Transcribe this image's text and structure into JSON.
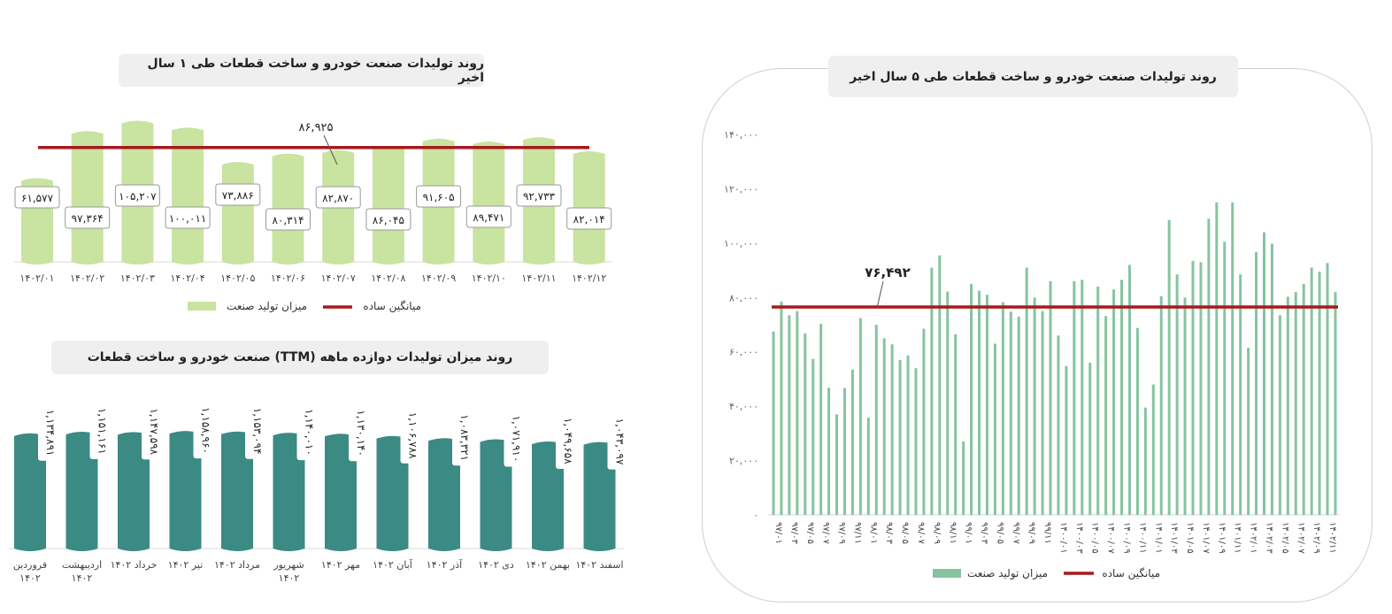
{
  "chart_data": [
    {
      "id": "c1",
      "type": "bar",
      "title": "روند تولیدات صنعت خودرو و ساخت قطعات طی ۱ سال اخیر",
      "categories": [
        "۱۴۰۲/۰۱",
        "۱۴۰۲/۰۲",
        "۱۴۰۲/۰۳",
        "۱۴۰۲/۰۴",
        "۱۴۰۲/۰۵",
        "۱۴۰۲/۰۶",
        "۱۴۰۲/۰۷",
        "۱۴۰۲/۰۸",
        "۱۴۰۲/۰۹",
        "۱۴۰۲/۱۰",
        "۱۴۰۲/۱۱",
        "۱۴۰۲/۱۲"
      ],
      "values": [
        61577,
        97364,
        105207,
        100011,
        73886,
        80314,
        82870,
        86045,
        91605,
        89471,
        92733,
        82014
      ],
      "value_labels": [
        "۶۱,۵۷۷",
        "۹۷,۳۶۴",
        "۱۰۵,۲۰۷",
        "۱۰۰,۰۱۱",
        "۷۳,۸۸۶",
        "۸۰,۳۱۴",
        "۸۲,۸۷۰",
        "۸۶,۰۴۵",
        "۹۱,۶۰۵",
        "۸۹,۴۷۱",
        "۹۲,۷۳۳",
        "۸۲,۰۱۴"
      ],
      "average": 86925,
      "average_label": "۸۶,۹۲۵",
      "legend": {
        "bar": "میزان تولید صنعت",
        "line": "میانگین ساده"
      },
      "colors": {
        "bar": "#c9e3a0",
        "line": "#a8181c"
      }
    },
    {
      "id": "c2",
      "type": "bar",
      "title": "روند میزان تولیدات دوازده ماهه (TTM) صنعت خودرو و ساخت قطعات",
      "categories": [
        "فروردین ۱۴۰۲",
        "اردیبهشت ۱۴۰۲",
        "خرداد ۱۴۰۲",
        "تیر ۱۴۰۲",
        "مرداد ۱۴۰۲",
        "شهریور ۱۴۰۲",
        "مهر ۱۴۰۲",
        "آبان ۱۴۰۲",
        "آذر ۱۴۰۲",
        "دی ۱۴۰۲",
        "بهمن ۱۴۰۲",
        "اسفند ۱۴۰۲"
      ],
      "values": [
        1134891,
        1151161,
        1147598,
        1158960,
        1153094,
        1140010,
        1130140,
        1106788,
        1083321,
        1071910,
        1049658,
        1043097
      ],
      "value_labels": [
        "۱,۱۳۴,۸۹۱",
        "۱,۱۵۱,۱۶۱",
        "۱,۱۴۷,۵۹۸",
        "۱,۱۵۸,۹۶۰",
        "۱,۱۵۳,۰۹۴",
        "۱,۱۴۰,۰۱۰",
        "۱,۱۳۰,۱۴۰",
        "۱,۱۰۶,۷۸۸",
        "۱,۰۸۳,۳۲۱",
        "۱,۰۷۱,۹۱۰",
        "۱,۰۴۹,۶۵۸",
        "۱,۰۴۳,۰۹۷"
      ],
      "colors": {
        "bar": "#3c8a84"
      }
    },
    {
      "id": "c3",
      "type": "bar",
      "title": "روند تولیدات صنعت خودرو و ساخت قطعات طی ۵ سال اخیر",
      "ylim": [
        0,
        140000
      ],
      "yticks": [
        "۰",
        "۲۰,۰۰۰",
        "۴۰,۰۰۰",
        "۶۰,۰۰۰",
        "۸۰,۰۰۰",
        "۱۰۰,۰۰۰",
        "۱۲۰,۰۰۰",
        "۱۴۰,۰۰۰"
      ],
      "x_labels": [
        "۹۷/۰۱",
        "۹۷/۰۳",
        "۹۷/۰۵",
        "۹۷/۰۷",
        "۹۷/۰۹",
        "۹۷/۱۱",
        "۹۸/۰۱",
        "۹۸/۰۳",
        "۹۸/۰۵",
        "۹۸/۰۷",
        "۹۸/۰۹",
        "۹۸/۱۱",
        "۹۹/۰۱",
        "۹۹/۰۳",
        "۹۹/۰۵",
        "۹۹/۰۷",
        "۹۹/۰۹",
        "۹۹/۱۱",
        "۱۴۰۰/۰۱",
        "۱۴۰۰/۰۳",
        "۱۴۰۰/۰۵",
        "۱۴۰۰/۰۷",
        "۱۴۰۰/۰۹",
        "۱۴۰۰/۱۱",
        "۱۴۰۱/۰۱",
        "۱۴۰۱/۰۳",
        "۱۴۰۱/۰۵",
        "۱۴۰۱/۰۷",
        "۱۴۰۱/۰۹",
        "۱۴۰۱/۱۱",
        "۱۴۰۲/۰۱",
        "۱۴۰۲/۰۳",
        "۱۴۰۲/۰۵",
        "۱۴۰۲/۰۷",
        "۱۴۰۲/۰۹",
        "۱۴۰۲/۱۱"
      ],
      "values": [
        67500,
        78500,
        73500,
        75000,
        66800,
        57400,
        70300,
        46800,
        37000,
        46700,
        53500,
        72400,
        35800,
        70000,
        65000,
        62800,
        57000,
        58700,
        54000,
        68500,
        91000,
        95500,
        82200,
        66500,
        27000,
        85000,
        82500,
        81000,
        63000,
        78300,
        74800,
        73000,
        91000,
        80000,
        75000,
        86000,
        66000,
        54800,
        86000,
        86500,
        56000,
        84000,
        73200,
        83000,
        86500,
        92000,
        68800,
        39500,
        48000,
        80500,
        108500,
        88500,
        80000,
        93500,
        93000,
        109000,
        115000,
        100500,
        115000,
        88500,
        61500,
        96800,
        104000,
        99800,
        73500,
        80300,
        82000,
        85000,
        91000,
        89500,
        92700,
        82000
      ],
      "average": 76492,
      "average_label": "۷۶,۴۹۲",
      "legend": {
        "bar": "میزان تولید صنعت",
        "line": "میانگین ساده"
      },
      "colors": {
        "bar": "#86c4a1",
        "line": "#a8181c"
      }
    }
  ]
}
